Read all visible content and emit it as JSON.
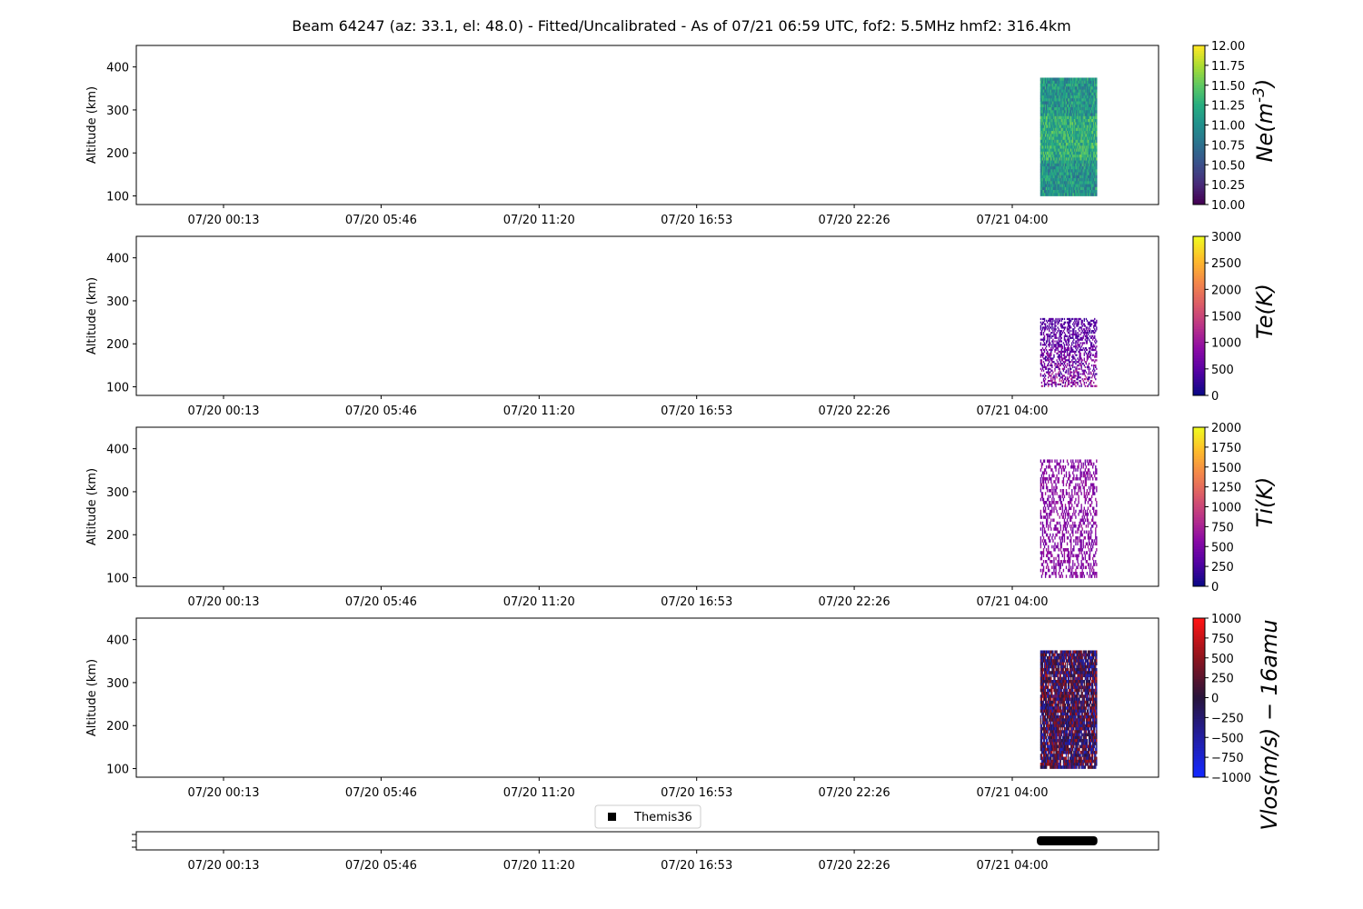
{
  "title": "Beam 64247 (az: 33.1, el: 48.0) - Fitted/Uncalibrated - As of 07/21 06:59 UTC, fof2: 5.5MHz  hmf2: 316.4km",
  "chart_data": [
    {
      "type": "heatmap",
      "ylabel": "Altitude (km)",
      "ylim": [
        80,
        450
      ],
      "yticks": [
        "100",
        "200",
        "300",
        "400"
      ],
      "xticks": [
        "07/20 00:13",
        "07/20 05:46",
        "07/20 11:20",
        "07/20 16:53",
        "07/20 22:26",
        "07/21 04:00"
      ],
      "data_extent": {
        "time_start": "07/21 04:59",
        "time_end": "07/21 06:59",
        "alt_min": 100,
        "alt_max": 375
      },
      "colorbar": {
        "label": "Ne(m^-3)",
        "label_main": "Ne(m",
        "label_sup": "-3",
        "label_tail": ")",
        "colormap": "viridis",
        "range": [
          10.0,
          12.0
        ],
        "ticks": [
          "10.00",
          "10.25",
          "10.50",
          "10.75",
          "11.00",
          "11.25",
          "11.50",
          "11.75",
          "12.00"
        ]
      },
      "fill_fraction": 1.0
    },
    {
      "type": "heatmap",
      "ylabel": "Altitude (km)",
      "ylim": [
        80,
        450
      ],
      "yticks": [
        "100",
        "200",
        "300",
        "400"
      ],
      "xticks": [
        "07/20 00:13",
        "07/20 05:46",
        "07/20 11:20",
        "07/20 16:53",
        "07/20 22:26",
        "07/21 04:00"
      ],
      "data_extent": {
        "time_start": "07/21 04:59",
        "time_end": "07/21 06:59",
        "alt_min": 100,
        "alt_max": 260
      },
      "colorbar": {
        "label": "Te(K)",
        "label_main": "Te(K)",
        "label_sup": "",
        "label_tail": "",
        "colormap": "plasma",
        "range": [
          0,
          3000
        ],
        "ticks": [
          "0",
          "500",
          "1000",
          "1500",
          "2000",
          "2500",
          "3000"
        ]
      },
      "fill_fraction": 0.45
    },
    {
      "type": "heatmap",
      "ylabel": "Altitude (km)",
      "ylim": [
        80,
        450
      ],
      "yticks": [
        "100",
        "200",
        "300",
        "400"
      ],
      "xticks": [
        "07/20 00:13",
        "07/20 05:46",
        "07/20 11:20",
        "07/20 16:53",
        "07/20 22:26",
        "07/21 04:00"
      ],
      "data_extent": {
        "time_start": "07/21 04:59",
        "time_end": "07/21 06:59",
        "alt_min": 100,
        "alt_max": 375
      },
      "colorbar": {
        "label": "Ti(K)",
        "label_main": "Ti(K)",
        "label_sup": "",
        "label_tail": "",
        "colormap": "plasma",
        "range": [
          0,
          2000
        ],
        "ticks": [
          "0",
          "250",
          "500",
          "750",
          "1000",
          "1250",
          "1500",
          "1750",
          "2000"
        ]
      },
      "fill_fraction": 0.35
    },
    {
      "type": "heatmap",
      "ylabel": "Altitude (km)",
      "ylim": [
        80,
        450
      ],
      "yticks": [
        "100",
        "200",
        "300",
        "400"
      ],
      "xticks": [
        "07/20 00:13",
        "07/20 05:46",
        "07/20 11:20",
        "07/20 16:53",
        "07/20 22:26",
        "07/21 04:00"
      ],
      "data_extent": {
        "time_start": "07/21 04:59",
        "time_end": "07/21 06:59",
        "alt_min": 100,
        "alt_max": 375
      },
      "colorbar": {
        "label": "Vlos(m/s) − 16amu",
        "label_main": "Vlos(m/s) − 16amu",
        "label_sup": "",
        "label_tail": "",
        "colormap": "bwr-dark",
        "range": [
          -1000,
          1000
        ],
        "ticks": [
          "−1000",
          "−750",
          "−500",
          "−250",
          "0",
          "250",
          "500",
          "750",
          "1000"
        ]
      },
      "fill_fraction": 0.9
    }
  ],
  "timeline": {
    "legend_label": "Themis36",
    "legend_marker": "square",
    "legend_placement": "upper-center",
    "mode_span": {
      "time_start": "07/21 04:52",
      "time_end": "07/21 07:00"
    },
    "xticks": [
      "07/20 00:13",
      "07/20 05:46",
      "07/20 11:20",
      "07/20 16:53",
      "07/20 22:26",
      "07/21 04:00"
    ]
  }
}
